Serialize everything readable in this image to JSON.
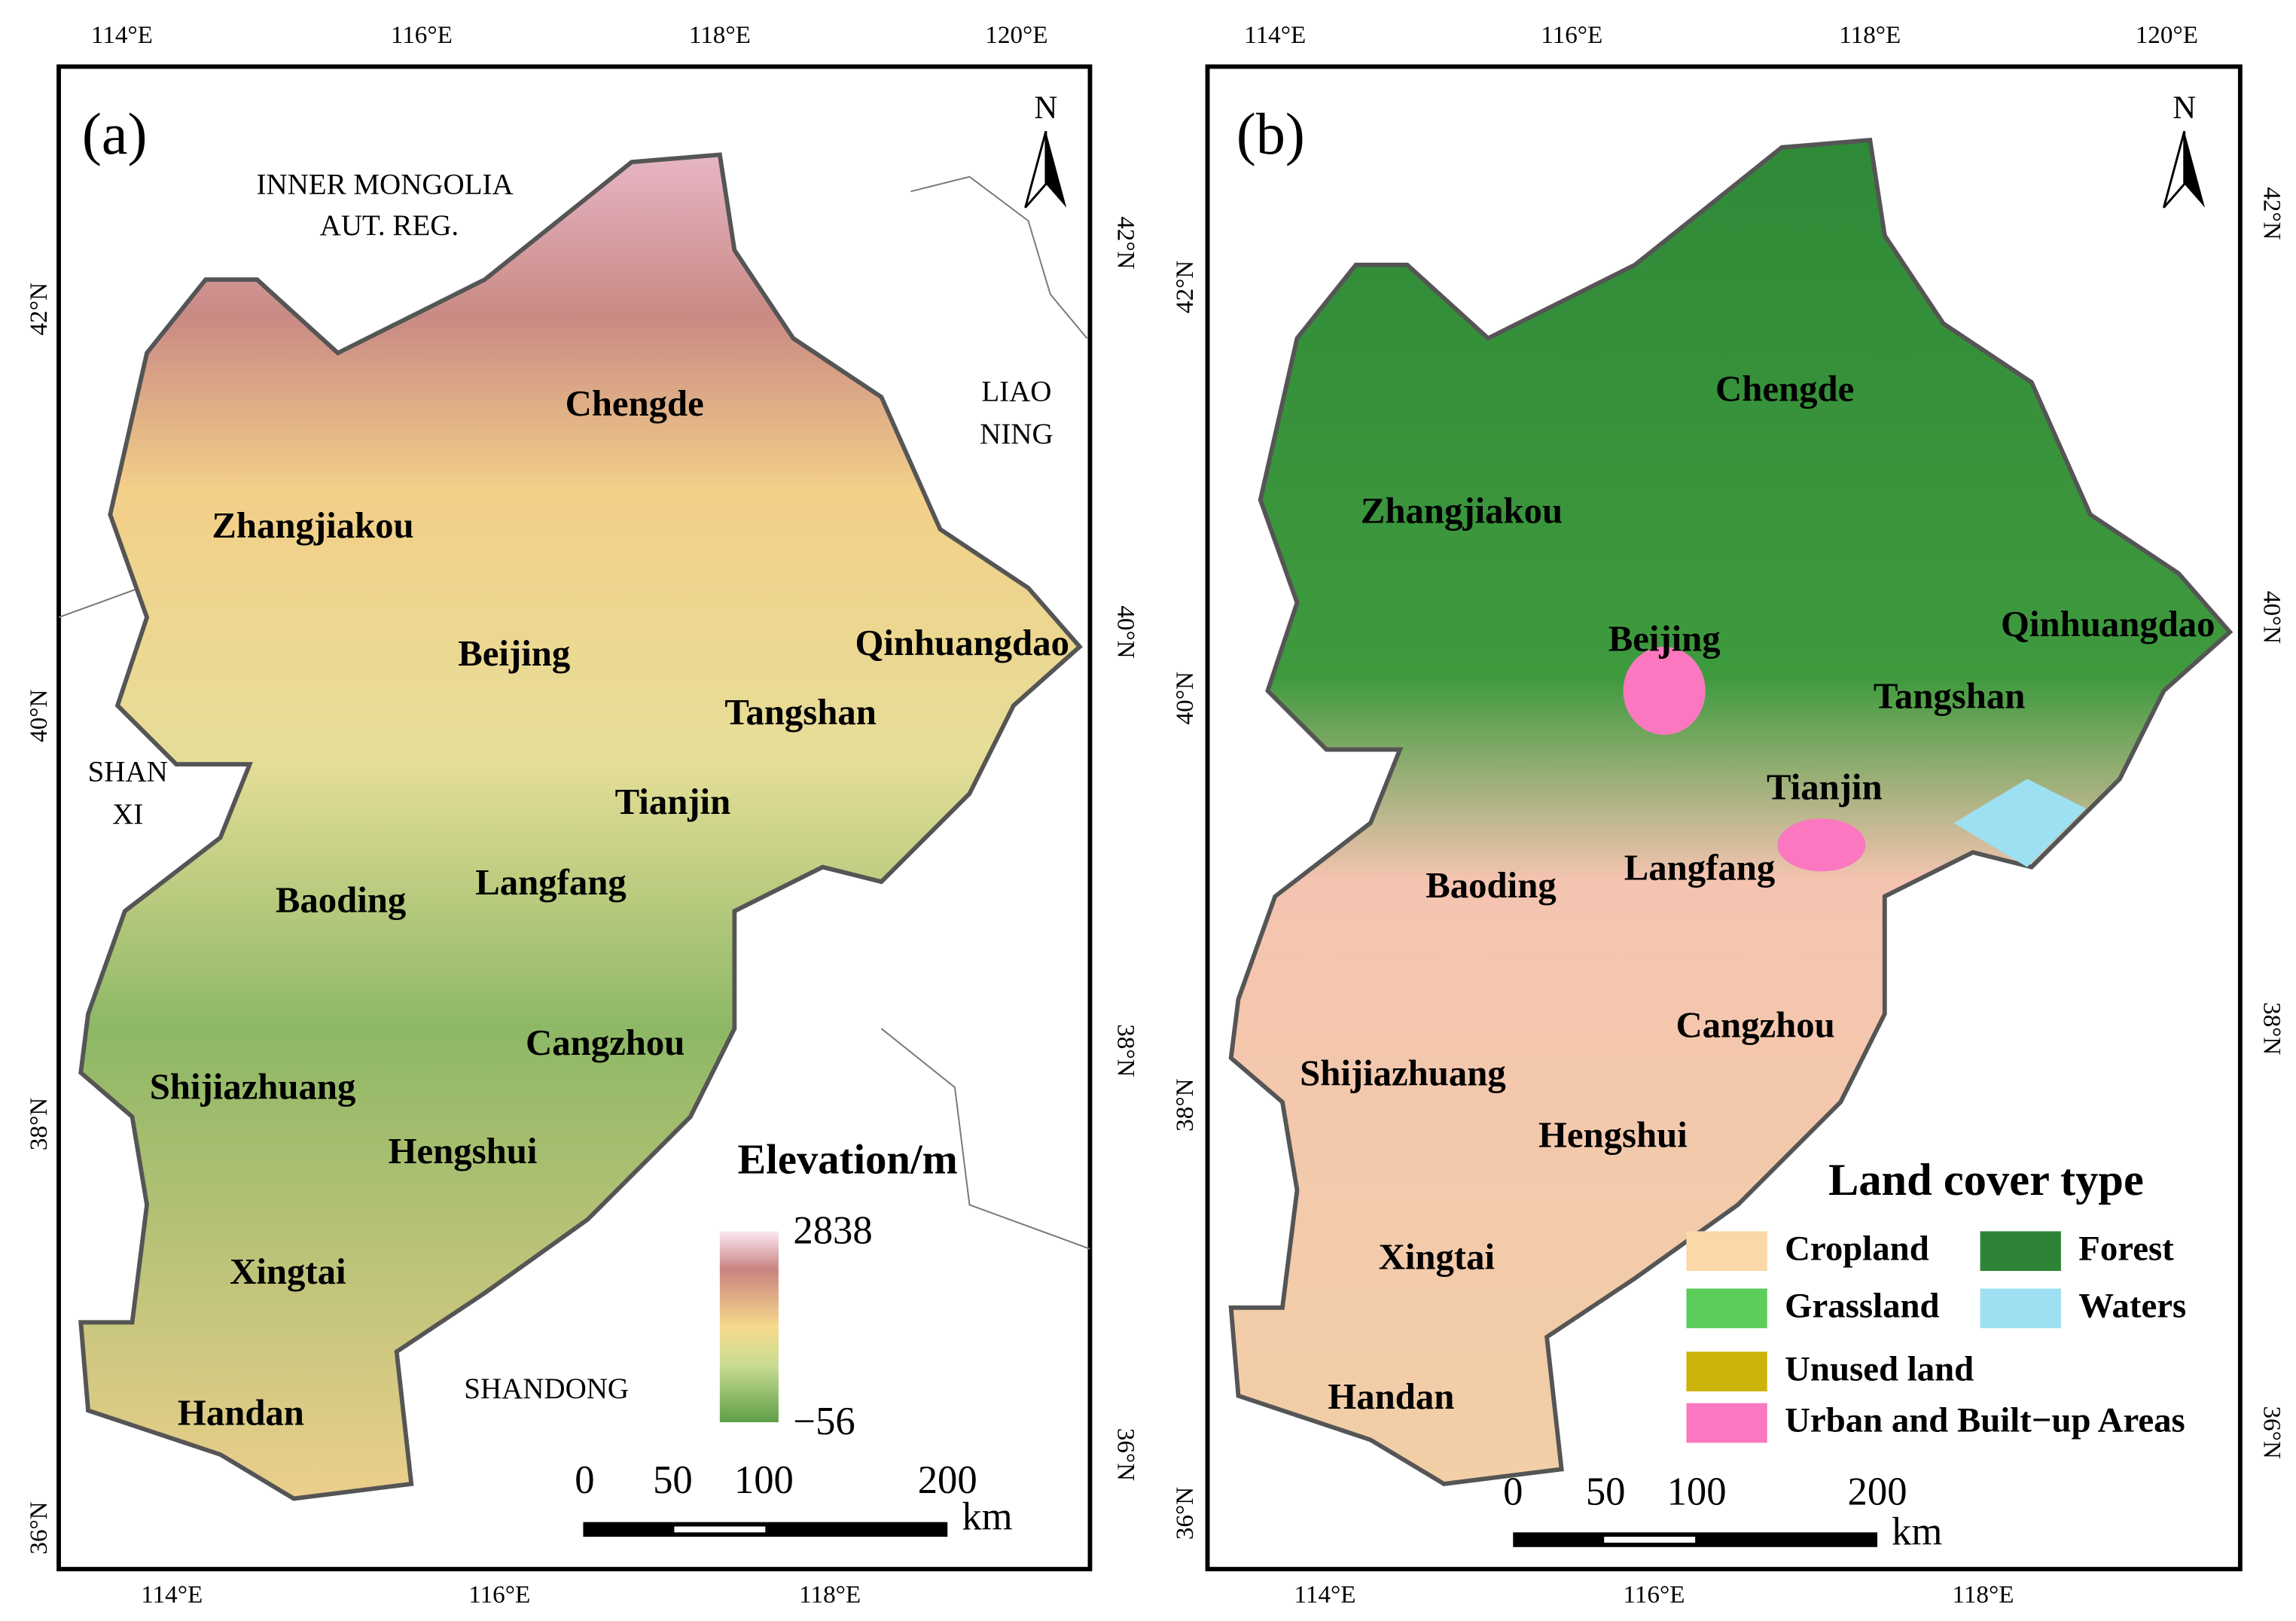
{
  "panel_a": {
    "label": "(a)",
    "north": "N",
    "top_ticks": [
      "114°E",
      "116°E",
      "118°E",
      "120°E"
    ],
    "bottom_ticks": [
      "114°E",
      "116°E",
      "118°E"
    ],
    "left_ticks": [
      "42°N",
      "40°N",
      "38°N",
      "36°N"
    ],
    "right_ticks": [
      "42°N",
      "40°N",
      "38°N",
      "36°N"
    ],
    "regions": [
      "INNER MONGOLIA",
      "AUT. REG.",
      "LIAO",
      "NING",
      "SHAN",
      "XI",
      "SHANDONG"
    ],
    "cities": [
      "Zhangjiakou",
      "Chengde",
      "Beijing",
      "Qinhuangdao",
      "Tangshan",
      "Tianjin",
      "Langfang",
      "Baoding",
      "Cangzhou",
      "Shijiazhuang",
      "Hengshui",
      "Xingtai",
      "Handan"
    ],
    "legend": {
      "title": "Elevation/m",
      "max": "2838",
      "min": "−56"
    },
    "scale": {
      "labels": [
        "0",
        "50",
        "100",
        "200"
      ],
      "unit": "km"
    }
  },
  "panel_b": {
    "label": "(b)",
    "north": "N",
    "top_ticks": [
      "114°E",
      "116°E",
      "118°E",
      "120°E"
    ],
    "bottom_ticks": [
      "114°E",
      "116°E",
      "118°E"
    ],
    "left_ticks": [
      "42°N",
      "40°N",
      "38°N",
      "36°N"
    ],
    "right_ticks": [
      "42°N",
      "40°N",
      "38°N",
      "36°N"
    ],
    "cities": [
      "Zhangjiakou",
      "Chengde",
      "Beijing",
      "Qinhuangdao",
      "Tangshan",
      "Tianjin",
      "Langfang",
      "Baoding",
      "Cangzhou",
      "Shijiazhuang",
      "Hengshui",
      "Xingtai",
      "Handan"
    ],
    "legend": {
      "title": "Land cover type",
      "items": [
        {
          "label": "Cropland",
          "color": "#fad8a8"
        },
        {
          "label": "Forest",
          "color": "#2e8436"
        },
        {
          "label": "Grassland",
          "color": "#5ccc5a"
        },
        {
          "label": "Waters",
          "color": "#9de0f2"
        },
        {
          "label": "Unused land",
          "color": "#ccb30a"
        },
        {
          "label": "Urban and Built−up Areas",
          "color": "#fb78c0"
        }
      ]
    },
    "scale": {
      "labels": [
        "0",
        "50",
        "100",
        "200"
      ],
      "unit": "km"
    }
  }
}
